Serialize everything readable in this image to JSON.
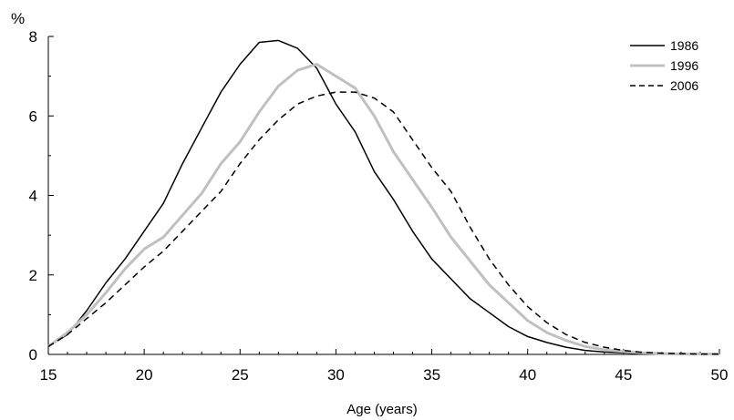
{
  "chart_data": {
    "type": "line",
    "title": "",
    "xlabel": "Age (years)",
    "ylabel": "%",
    "xlim": [
      15,
      50
    ],
    "ylim": [
      0,
      8
    ],
    "xticks": [
      15,
      20,
      25,
      30,
      35,
      40,
      45,
      50
    ],
    "yticks": [
      0,
      2,
      4,
      6,
      8
    ],
    "grid": false,
    "legend_position": "top-right",
    "series": [
      {
        "name": "1986",
        "color": "#000000",
        "style": "solid",
        "x": [
          15,
          16,
          17,
          18,
          19,
          20,
          21,
          22,
          23,
          24,
          25,
          26,
          27,
          28,
          29,
          30,
          31,
          32,
          33,
          34,
          35,
          36,
          37,
          38,
          39,
          40,
          41,
          42,
          43,
          44,
          45,
          46,
          47,
          48,
          49,
          50
        ],
        "values": [
          0.2,
          0.5,
          1.1,
          1.8,
          2.4,
          3.1,
          3.8,
          4.8,
          5.7,
          6.6,
          7.3,
          7.85,
          7.9,
          7.7,
          7.2,
          6.3,
          5.6,
          4.6,
          3.9,
          3.1,
          2.4,
          1.9,
          1.4,
          1.05,
          0.7,
          0.45,
          0.3,
          0.18,
          0.1,
          0.06,
          0.04,
          0.02,
          0.01,
          0.01,
          0.01,
          0.01
        ]
      },
      {
        "name": "1996",
        "color": "#c0c0c0",
        "style": "solid",
        "x": [
          15,
          16,
          17,
          18,
          19,
          20,
          21,
          22,
          23,
          24,
          25,
          26,
          27,
          28,
          29,
          30,
          31,
          32,
          33,
          34,
          35,
          36,
          37,
          38,
          39,
          40,
          41,
          42,
          43,
          44,
          45,
          46,
          47,
          48,
          49,
          50
        ],
        "values": [
          0.2,
          0.55,
          1.0,
          1.55,
          2.15,
          2.65,
          2.95,
          3.5,
          4.05,
          4.8,
          5.35,
          6.1,
          6.75,
          7.15,
          7.3,
          7.0,
          6.7,
          6.0,
          5.1,
          4.4,
          3.7,
          2.95,
          2.35,
          1.75,
          1.3,
          0.85,
          0.55,
          0.35,
          0.2,
          0.12,
          0.07,
          0.04,
          0.02,
          0.01,
          0.01,
          0.01
        ]
      },
      {
        "name": "2006",
        "color": "#000000",
        "style": "dashed",
        "x": [
          15,
          16,
          17,
          18,
          19,
          20,
          21,
          22,
          23,
          24,
          25,
          26,
          27,
          28,
          29,
          30,
          31,
          32,
          33,
          34,
          35,
          36,
          37,
          38,
          39,
          40,
          41,
          42,
          43,
          44,
          45,
          46,
          47,
          48,
          49,
          50
        ],
        "values": [
          0.2,
          0.5,
          0.9,
          1.3,
          1.75,
          2.2,
          2.6,
          3.1,
          3.6,
          4.1,
          4.8,
          5.4,
          5.9,
          6.3,
          6.5,
          6.6,
          6.6,
          6.45,
          6.1,
          5.4,
          4.7,
          4.1,
          3.2,
          2.4,
          1.75,
          1.2,
          0.8,
          0.5,
          0.3,
          0.18,
          0.1,
          0.05,
          0.03,
          0.02,
          0.01,
          0.01
        ]
      }
    ]
  }
}
